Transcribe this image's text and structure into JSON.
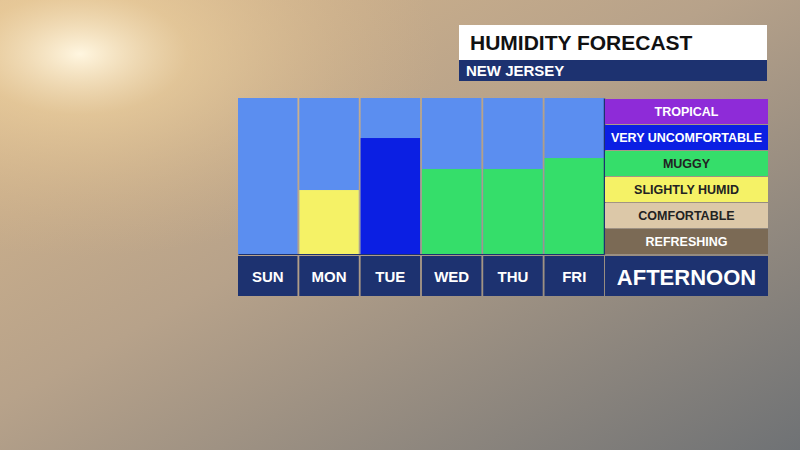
{
  "chart_data": {
    "type": "bar",
    "title": "HUMIDITY FORECAST",
    "subtitle": "NEW JERSEY",
    "xlabel": "AFTERNOON",
    "categories": [
      "SUN",
      "MON",
      "TUE",
      "WED",
      "THU",
      "FRI"
    ],
    "values": [
      0,
      2.46,
      4.46,
      3.27,
      3.27,
      3.69
    ],
    "colors": [
      "#5b8ef0",
      "#f5f266",
      "#0b1fe3",
      "#35de6a",
      "#35de6a",
      "#35de6a"
    ],
    "ylim": [
      0,
      6
    ],
    "yticks": [
      {
        "value": 0.5,
        "label": "REFRESHING"
      },
      {
        "value": 1.5,
        "label": "COMFORTABLE"
      },
      {
        "value": 2.5,
        "label": "SLIGHTLY HUMID"
      },
      {
        "value": 3.5,
        "label": "MUGGY"
      },
      {
        "value": 4.5,
        "label": "VERY UNCOMFORTABLE"
      },
      {
        "value": 5.5,
        "label": "TROPICAL"
      }
    ],
    "grid": false
  }
}
